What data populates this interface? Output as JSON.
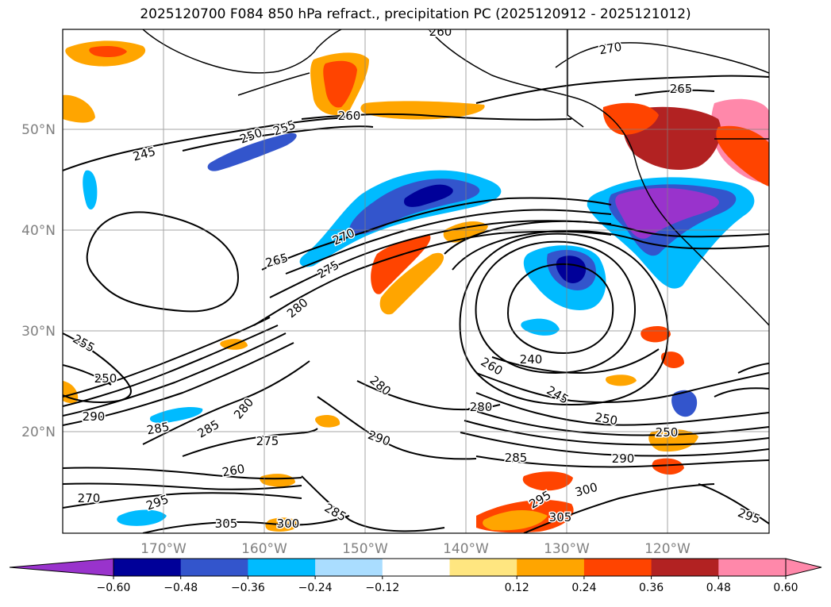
{
  "title": "2025120700 F084 850 hPa refract., precipitation PC (2025120912 - 2025121012)",
  "map": {
    "lon_ticks": [
      "170°W",
      "160°W",
      "150°W",
      "140°W",
      "130°W",
      "120°W"
    ],
    "lat_ticks": [
      "50°N",
      "40°N",
      "30°N",
      "20°N"
    ],
    "grid": true,
    "contour_labels": [
      "260",
      "270",
      "265",
      "250",
      "255",
      "245",
      "260",
      "270",
      "265",
      "275",
      "280",
      "255",
      "250",
      "290",
      "285",
      "285",
      "280",
      "275",
      "280",
      "290",
      "280",
      "240",
      "260",
      "245",
      "250",
      "250",
      "285",
      "290",
      "295",
      "300",
      "305",
      "300",
      "305",
      "295",
      "285",
      "270",
      "260",
      "295"
    ]
  },
  "colorbar": {
    "tick_labels": [
      "−0.60",
      "−0.48",
      "−0.36",
      "−0.24",
      "−0.12",
      "0.12",
      "0.24",
      "0.36",
      "0.48",
      "0.60"
    ],
    "colors": [
      "#9933cc",
      "#000099",
      "#3355cc",
      "#00bbff",
      "#aaddff",
      "#ffffff",
      "#ffe680",
      "#ffa500",
      "#ff4400",
      "#b22222",
      "#ff88aa",
      "#ff88aa"
    ],
    "extend": "both"
  }
}
